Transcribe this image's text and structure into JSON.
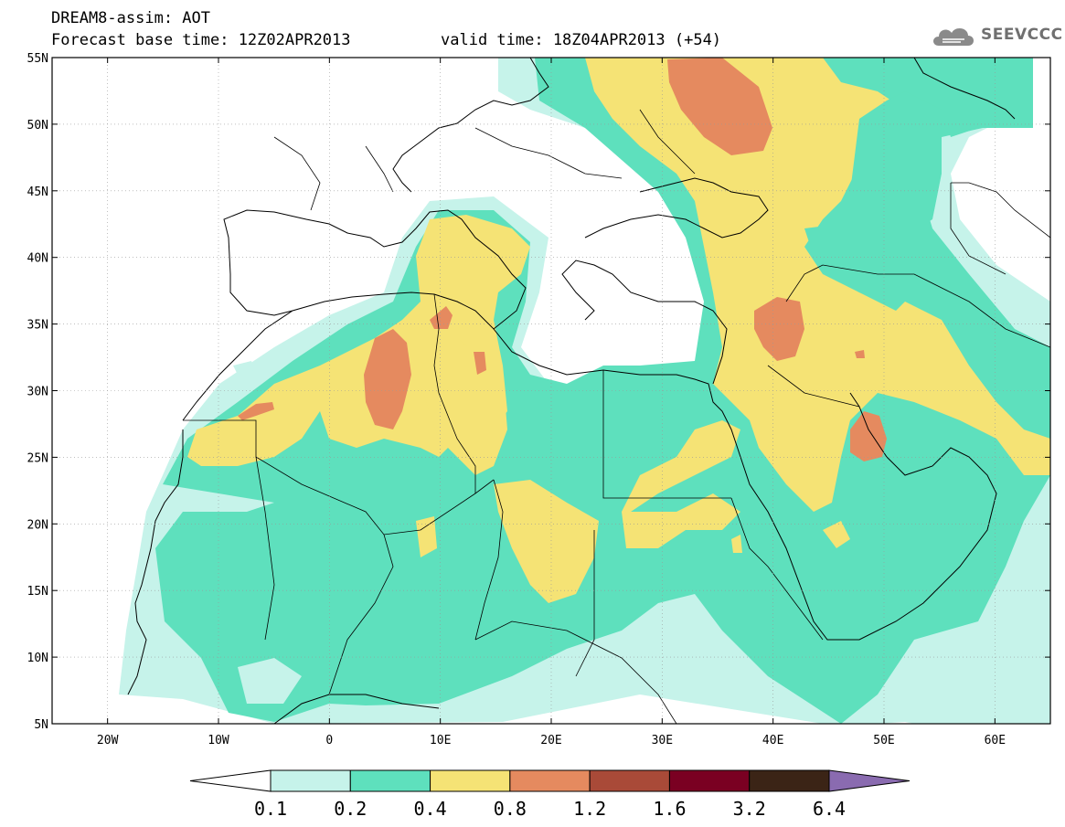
{
  "header": {
    "line1": "DREAM8-assim: AOT",
    "line2": "Forecast base time: 12Z02APR2013",
    "valid": "valid time: 18Z04APR2013 (+54)"
  },
  "logo": {
    "text": "SEEVCCC",
    "icon": "cloud-logo-icon"
  },
  "axes": {
    "lat_labels": [
      "55N",
      "50N",
      "45N",
      "40N",
      "35N",
      "30N",
      "25N",
      "20N",
      "15N",
      "10N",
      "5N"
    ],
    "lon_labels": [
      "20W",
      "10W",
      "0",
      "10E",
      "20E",
      "30E",
      "40E",
      "50E",
      "60E"
    ],
    "lon_range": [
      -25,
      65
    ],
    "lat_range": [
      5,
      55
    ],
    "grid": "dotted"
  },
  "colorbar": {
    "labels": [
      "0.1",
      "0.2",
      "0.4",
      "0.8",
      "1.2",
      "1.6",
      "3.2",
      "6.4"
    ],
    "colors": [
      "#ffffff",
      "#c6f3ea",
      "#5ee0bd",
      "#f5e375",
      "#e58a5f",
      "#a94a38",
      "#7a0022",
      "#3b2416",
      "#8a6bb0"
    ]
  },
  "colors": {
    "level1": "#c6f3ea",
    "level2": "#5ee0bd",
    "level3": "#f5e375",
    "level4": "#e58a5f",
    "border": "#000000"
  }
}
